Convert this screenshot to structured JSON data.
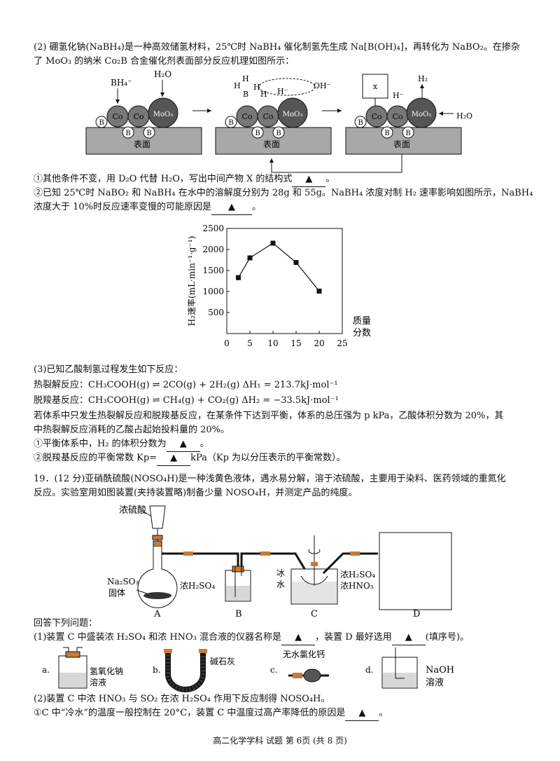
{
  "section2": {
    "intro_line1": "(2) 硼氢化钠(NaBH₄)是一种高效储氢材料，25℃时 NaBH₄ 催化制氢先生成 Na[B(OH)₄]，再转化为 NaBO₂。在掺杂",
    "intro_line2": "了 MoO₃ 的纳米 Co₂B 合金催化剂表面部分反应机理如图所示：",
    "mech_labels": {
      "bh4": "BH₄⁻",
      "h2o": "H₂O",
      "co": "Co",
      "moo3": "MoO₃",
      "b": "B",
      "surface": "表面",
      "x": "x",
      "h2": "H₂",
      "h_minus": "H⁻",
      "oh_minus": "OH⁻",
      "h": "H"
    },
    "q1": "①其他条件不变，用 D₂O 代替 H₂O，写出中间产物 X 的结构式",
    "q1_end": "。",
    "q2_line1": "②已知 25℃时 NaBO₂ 和 NaBH₄ 在水中的溶解度分别为 28g 和 55g。NaBH₄ 浓度对制 H₂ 速率影响如图所示，NaBH₄",
    "q2_line2": "浓度大于 10%时反应速率变慢的可能原因是",
    "q2_end": "。",
    "blank_mark": "▲"
  },
  "chart_data": {
    "type": "line",
    "x": [
      2.5,
      5,
      10,
      15,
      20
    ],
    "y": [
      1330,
      1800,
      2150,
      1690,
      1010
    ],
    "xlabel": "质量分数",
    "xlabel_lines": [
      "质量",
      "分数"
    ],
    "ylabel": "H₂速率(mL·min⁻¹·g⁻¹)",
    "xlim": [
      0,
      25
    ],
    "ylim": [
      0,
      2500
    ],
    "xticks": [
      0,
      5,
      10,
      15,
      20,
      25
    ],
    "yticks": [
      500,
      1000,
      1500,
      2000,
      2500
    ],
    "marker": "square",
    "grid": false
  },
  "section3": {
    "title": "(3)已知乙酸制氢过程发生如下反应：",
    "r1": "热裂解反应：CH₃COOH(g) ⇌ 2CO(g) + 2H₂(g)   ΔH₁ = 213.7kJ·mol⁻¹",
    "r2": "脱羧基反应：CH₃COOH(g) ⇌ CH₄(g) + CO₂(g)   ΔH₂ = −33.5kJ·mol⁻¹",
    "p1": "若体系中只发生热裂解反应和脱羧基反应，在某条件下达到平衡，体系的总压强为 p kPa，乙酸体积分数为 20%，其",
    "p2": "中热裂解反应消耗的乙酸占起始投料量的 20%。",
    "q1": "①平衡体系中，H₂ 的体积分数为",
    "q1_end": "。",
    "q2a": "②脱羧基反应的平衡常数 Kp=",
    "q2b": "kPa（Kp 为以分压表示的平衡常数）。"
  },
  "section19": {
    "p1": "19．(12 分)亚硝酰硫酸(NOSO₄H)是一种浅黄色液体，遇水易分解，溶于浓硫酸，主要用于染料、医药领域的重氮化",
    "p2": "反应。实验室用如图装置(夹持装置略)制备少量 NOSO₄H，并测定产品的纯度。",
    "app": {
      "conc_h2so4_top": "浓硫酸",
      "na2so3_line1": "Na₂SO₃",
      "na2so3_line2": "固体",
      "b_label": "浓H₂SO₄",
      "ice_line1": "冰",
      "ice_line2": "水",
      "c_label_line1": "浓H₂SO₄",
      "c_label_line2": "浓HNO₃",
      "A": "A",
      "B": "B",
      "C": "C",
      "D": "D"
    },
    "answer_intro": "回答下列问题：",
    "q1": "(1)装置 C 中盛装浓 H₂SO₄ 和浓 HNO₃ 混合液的仪器名称是",
    "q1_mid": "，装置 D 最好选用",
    "q1_end": "(填序号)。",
    "options": {
      "a": "a.",
      "a_label_line1": "氢氧化钠",
      "a_label_line2": "溶液",
      "b": "b.",
      "b_label": "碱石灰",
      "c": "c.",
      "c_label": "无水氯化钙",
      "d": "d.",
      "d_label_line1": "NaOH",
      "d_label_line2": "溶液"
    },
    "q2": "(2)装置 C 中浓 HNO₃ 与 SO₂ 在浓 H₂SO₄ 作用下反应制得 NOSO₄H。",
    "q2_1": "①C 中“冷水”的温度一般控制在 20°C，装置 C 中温度过高产率降低的原因是",
    "q2_1_end": "。"
  },
  "footer": "高二化学学科 试题 第 6页 (共 8 页)"
}
